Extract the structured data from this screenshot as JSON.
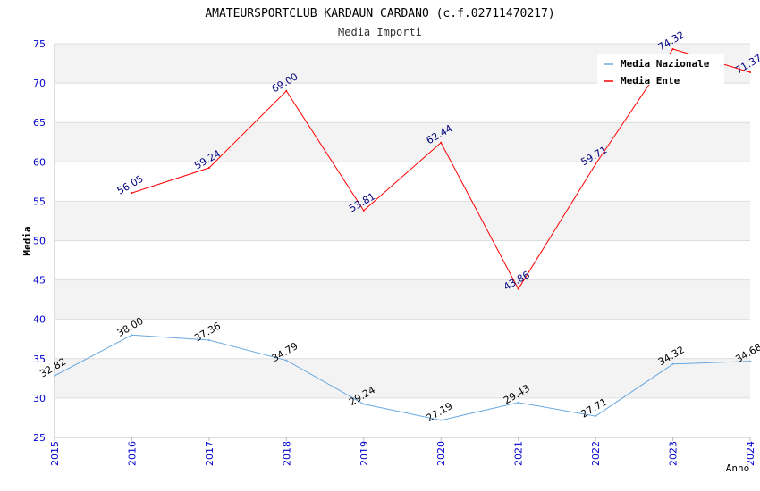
{
  "chart_data": {
    "type": "line",
    "title": "AMATEURSPORTCLUB KARDAUN CARDANO (c.f.02711470217)",
    "subtitle": "Media Importi",
    "xlabel": "Anno",
    "ylabel": "Media",
    "ylim": [
      25,
      75
    ],
    "yticks": [
      25,
      30,
      35,
      40,
      45,
      50,
      55,
      60,
      65,
      70,
      75
    ],
    "x": [
      "2015",
      "2016",
      "2017",
      "2018",
      "2019",
      "2020",
      "2021",
      "2022",
      "2023",
      "2024"
    ],
    "grid": "horizontal, alternating bands",
    "legend_position": "top-right",
    "series": [
      {
        "name": "Media Nazionale",
        "color": "#6aa9e0",
        "label_color": "#000000",
        "values": [
          32.82,
          38.0,
          37.36,
          34.79,
          29.24,
          27.19,
          29.43,
          27.71,
          34.32,
          34.68
        ],
        "labels": [
          "32.82",
          "38.00",
          "37.36",
          "34.79",
          "29.24",
          "27.19",
          "29.43",
          "27.71",
          "34.32",
          "34.68"
        ]
      },
      {
        "name": "Media Ente",
        "color": "#ff0000",
        "label_color": "#000080",
        "values": [
          null,
          56.05,
          59.24,
          69.0,
          53.81,
          62.44,
          43.86,
          59.71,
          74.32,
          71.37
        ],
        "labels": [
          null,
          "56.05",
          "59.24",
          "69.00",
          "53.81",
          "62.44",
          "43.86",
          "59.71",
          "74.32",
          "71.37"
        ]
      }
    ],
    "colors": {
      "tick_label": "#0000cc",
      "band": "#f3f3f3",
      "gridline": "#dddddd",
      "axis": "#bbbbbb"
    }
  }
}
